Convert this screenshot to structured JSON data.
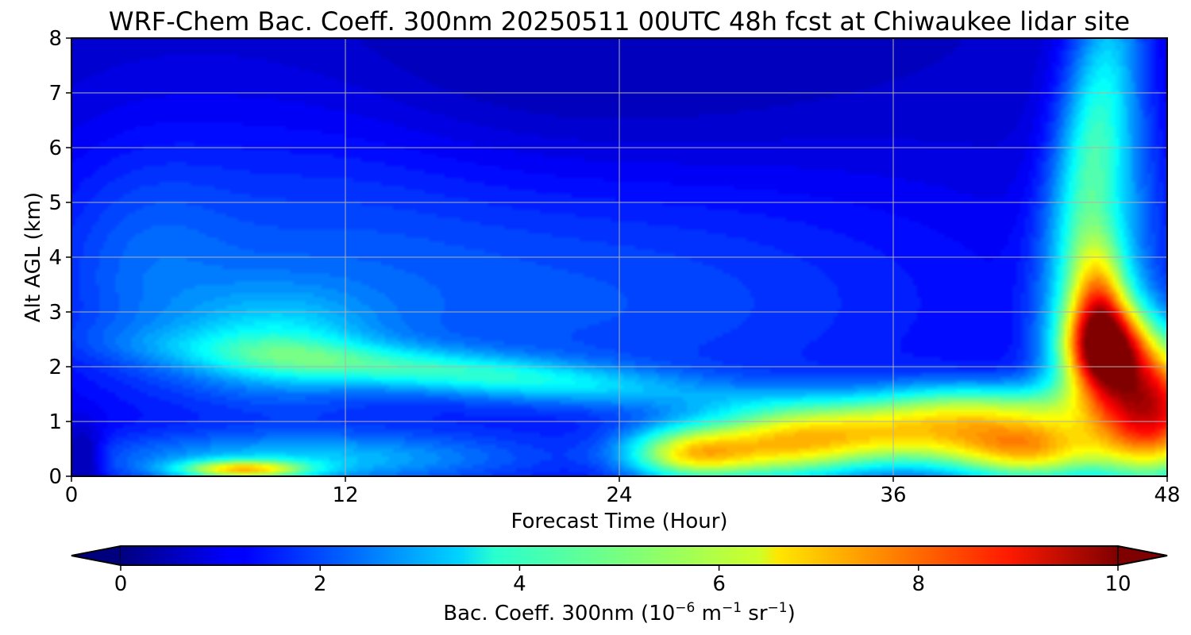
{
  "chart_data": {
    "type": "heatmap",
    "title": "WRF-Chem Bac. Coeff. 300nm  20250511 00UTC 48h fcst at Chiwaukee lidar site",
    "xlabel": "Forecast Time (Hour)",
    "ylabel": "Alt AGL (km)",
    "x_ticks": [
      "0",
      "12",
      "24",
      "36",
      "48"
    ],
    "y_ticks": [
      "0",
      "1",
      "2",
      "3",
      "4",
      "5",
      "6",
      "7",
      "8"
    ],
    "xlim": [
      0,
      48
    ],
    "ylim": [
      0,
      8
    ],
    "grid": true,
    "colormap": "jet",
    "colorbar": {
      "orientation": "horizontal",
      "location": "bottom",
      "extend": "both",
      "range": [
        0,
        10
      ],
      "ticks": [
        "0",
        "2",
        "4",
        "6",
        "8",
        "10"
      ],
      "label_main": "Bac. Coeff. 300nm  (10",
      "label_exp1": "−6",
      "label_mid1": " m",
      "label_exp2": "−1",
      "label_mid2": " sr",
      "label_exp3": "−1",
      "label_end": ")"
    },
    "field_features": [
      {
        "feature": "background above 5 km",
        "x": [
          0,
          44
        ],
        "y": [
          5,
          8
        ],
        "value": 0.3
      },
      {
        "feature": "moderate layer near 1.5-2 km",
        "x": [
          8,
          30
        ],
        "y": [
          1.3,
          2.1
        ],
        "value": 3.5
      },
      {
        "feature": "surface layer",
        "x": [
          1,
          22
        ],
        "y": [
          0,
          0.8
        ],
        "value": 3.0
      },
      {
        "feature": "near-surface max",
        "x": [
          6,
          9
        ],
        "y": [
          0,
          0.2
        ],
        "value": 8.0
      },
      {
        "feature": "boundary layer plume",
        "x": [
          25,
          48
        ],
        "y": [
          0,
          1.2
        ],
        "value": 8.0
      },
      {
        "feature": "elevated plume",
        "x": [
          42,
          48
        ],
        "y": [
          0.5,
          2.2
        ],
        "value": 10.0
      },
      {
        "feature": "rising column",
        "x": [
          43,
          47
        ],
        "y": [
          2,
          8
        ],
        "value": 3.5
      }
    ]
  }
}
